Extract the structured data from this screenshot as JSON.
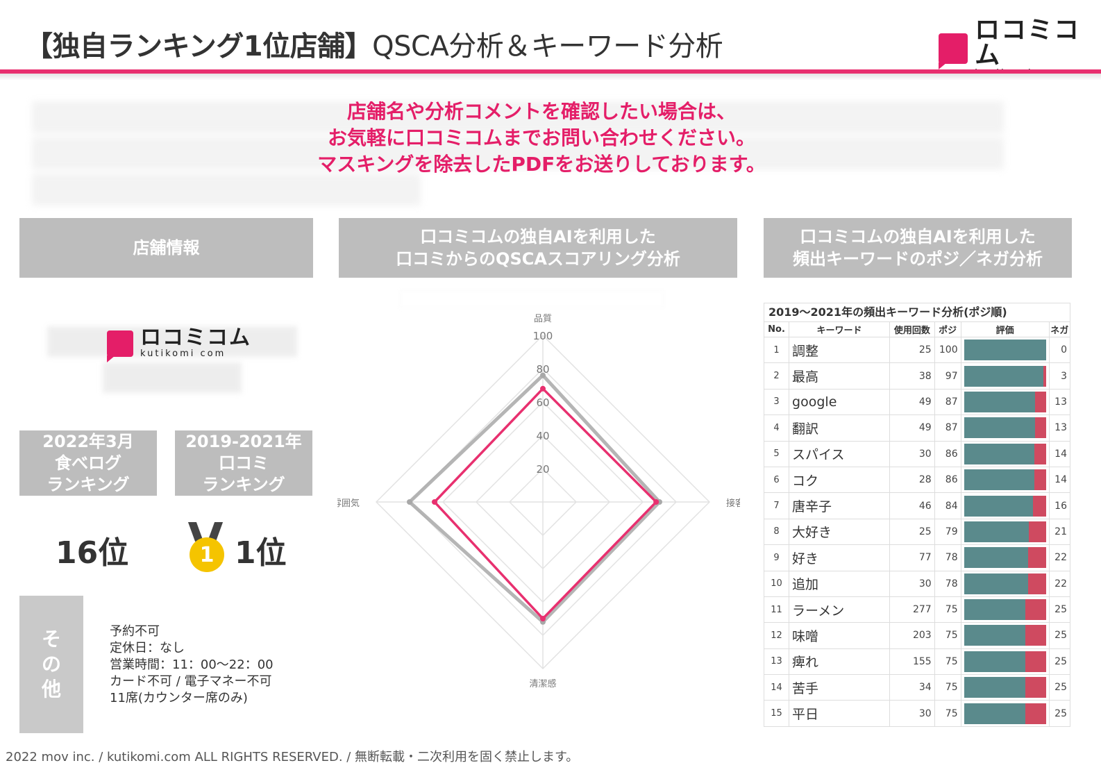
{
  "header": {
    "title_bold": "【独自ランキング1位店舗】",
    "title_rest": "QSCA分析＆キーワード分析",
    "logo_jp": "ロコミコム",
    "logo_en": "kutikomi com"
  },
  "notice": {
    "line1": "店舗名や分析コメントを確認したい場合は、",
    "line2": "お気軽に口コミコムまでお問い合わせください。",
    "line3": "マスキングを除去したPDFをお送りしております。"
  },
  "sections": {
    "store_info": "店舗情報",
    "qsca_line1": "口コミコムの独自AIを利用した",
    "qsca_line2": "口コミからのQSCAスコアリング分析",
    "kw_line1": "口コミコムの独自AIを利用した",
    "kw_line2": "頻出キーワードのポジ／ネガ分析"
  },
  "ranking": {
    "tabelog_l1": "2022年3月",
    "tabelog_l2": "食べログ",
    "tabelog_l3": "ランキング",
    "tabelog_value": "16位",
    "kuchikomi_l1": "2019-2021年",
    "kuchikomi_l2": "口コミ",
    "kuchikomi_l3": "ランキング",
    "kuchikomi_value": "1位",
    "medal_number": "1"
  },
  "other": {
    "label_chars": [
      "そ",
      "の",
      "他"
    ],
    "lines": [
      "予約不可",
      "定休日：なし",
      "営業時間：11：00～22：00",
      "カード不可 / 電子マネー不可",
      "11席(カウンター席のみ)"
    ]
  },
  "chart_data": {
    "type": "radar",
    "axes": [
      "品質",
      "接客",
      "清潔感",
      "雰囲気"
    ],
    "rlim": [
      0,
      100
    ],
    "ticks": [
      20,
      40,
      60,
      80,
      100
    ],
    "grid": true,
    "series": [
      {
        "values": [
          76,
          70,
          72,
          80
        ],
        "color": "#a8a8a8"
      },
      {
        "values": [
          68,
          68,
          70,
          65
        ],
        "color": "#e8306f"
      }
    ]
  },
  "keywords": {
    "title": "2019～2021年の頻出キーワード分析(ポジ順)",
    "headers": [
      "No.",
      "キーワード",
      "使用回数",
      "ポジ",
      "評価",
      "ネガ"
    ],
    "colors": {
      "positive": "#5a8a8c",
      "negative": "#cf4a60"
    },
    "rows": [
      {
        "no": "1",
        "word": "調整",
        "count": "25",
        "pos": "100",
        "neg": "0"
      },
      {
        "no": "2",
        "word": "最高",
        "count": "38",
        "pos": "97",
        "neg": "3"
      },
      {
        "no": "3",
        "word": "google",
        "count": "49",
        "pos": "87",
        "neg": "13"
      },
      {
        "no": "4",
        "word": "翻訳",
        "count": "49",
        "pos": "87",
        "neg": "13"
      },
      {
        "no": "5",
        "word": "スパイス",
        "count": "30",
        "pos": "86",
        "neg": "14"
      },
      {
        "no": "6",
        "word": "コク",
        "count": "28",
        "pos": "86",
        "neg": "14"
      },
      {
        "no": "7",
        "word": "唐辛子",
        "count": "46",
        "pos": "84",
        "neg": "16"
      },
      {
        "no": "8",
        "word": "大好き",
        "count": "25",
        "pos": "79",
        "neg": "21"
      },
      {
        "no": "9",
        "word": "好き",
        "count": "77",
        "pos": "78",
        "neg": "22"
      },
      {
        "no": "10",
        "word": "追加",
        "count": "30",
        "pos": "78",
        "neg": "22"
      },
      {
        "no": "11",
        "word": "ラーメン",
        "count": "277",
        "pos": "75",
        "neg": "25"
      },
      {
        "no": "12",
        "word": "味噌",
        "count": "203",
        "pos": "75",
        "neg": "25"
      },
      {
        "no": "13",
        "word": "痺れ",
        "count": "155",
        "pos": "75",
        "neg": "25"
      },
      {
        "no": "14",
        "word": "苦手",
        "count": "34",
        "pos": "75",
        "neg": "25"
      },
      {
        "no": "15",
        "word": "平日",
        "count": "30",
        "pos": "75",
        "neg": "25"
      }
    ]
  },
  "footer": "2022 mov inc. / kutikomi.com ALL RIGHTS RESERVED. / 無断転載・二次利用を固く禁止します。"
}
